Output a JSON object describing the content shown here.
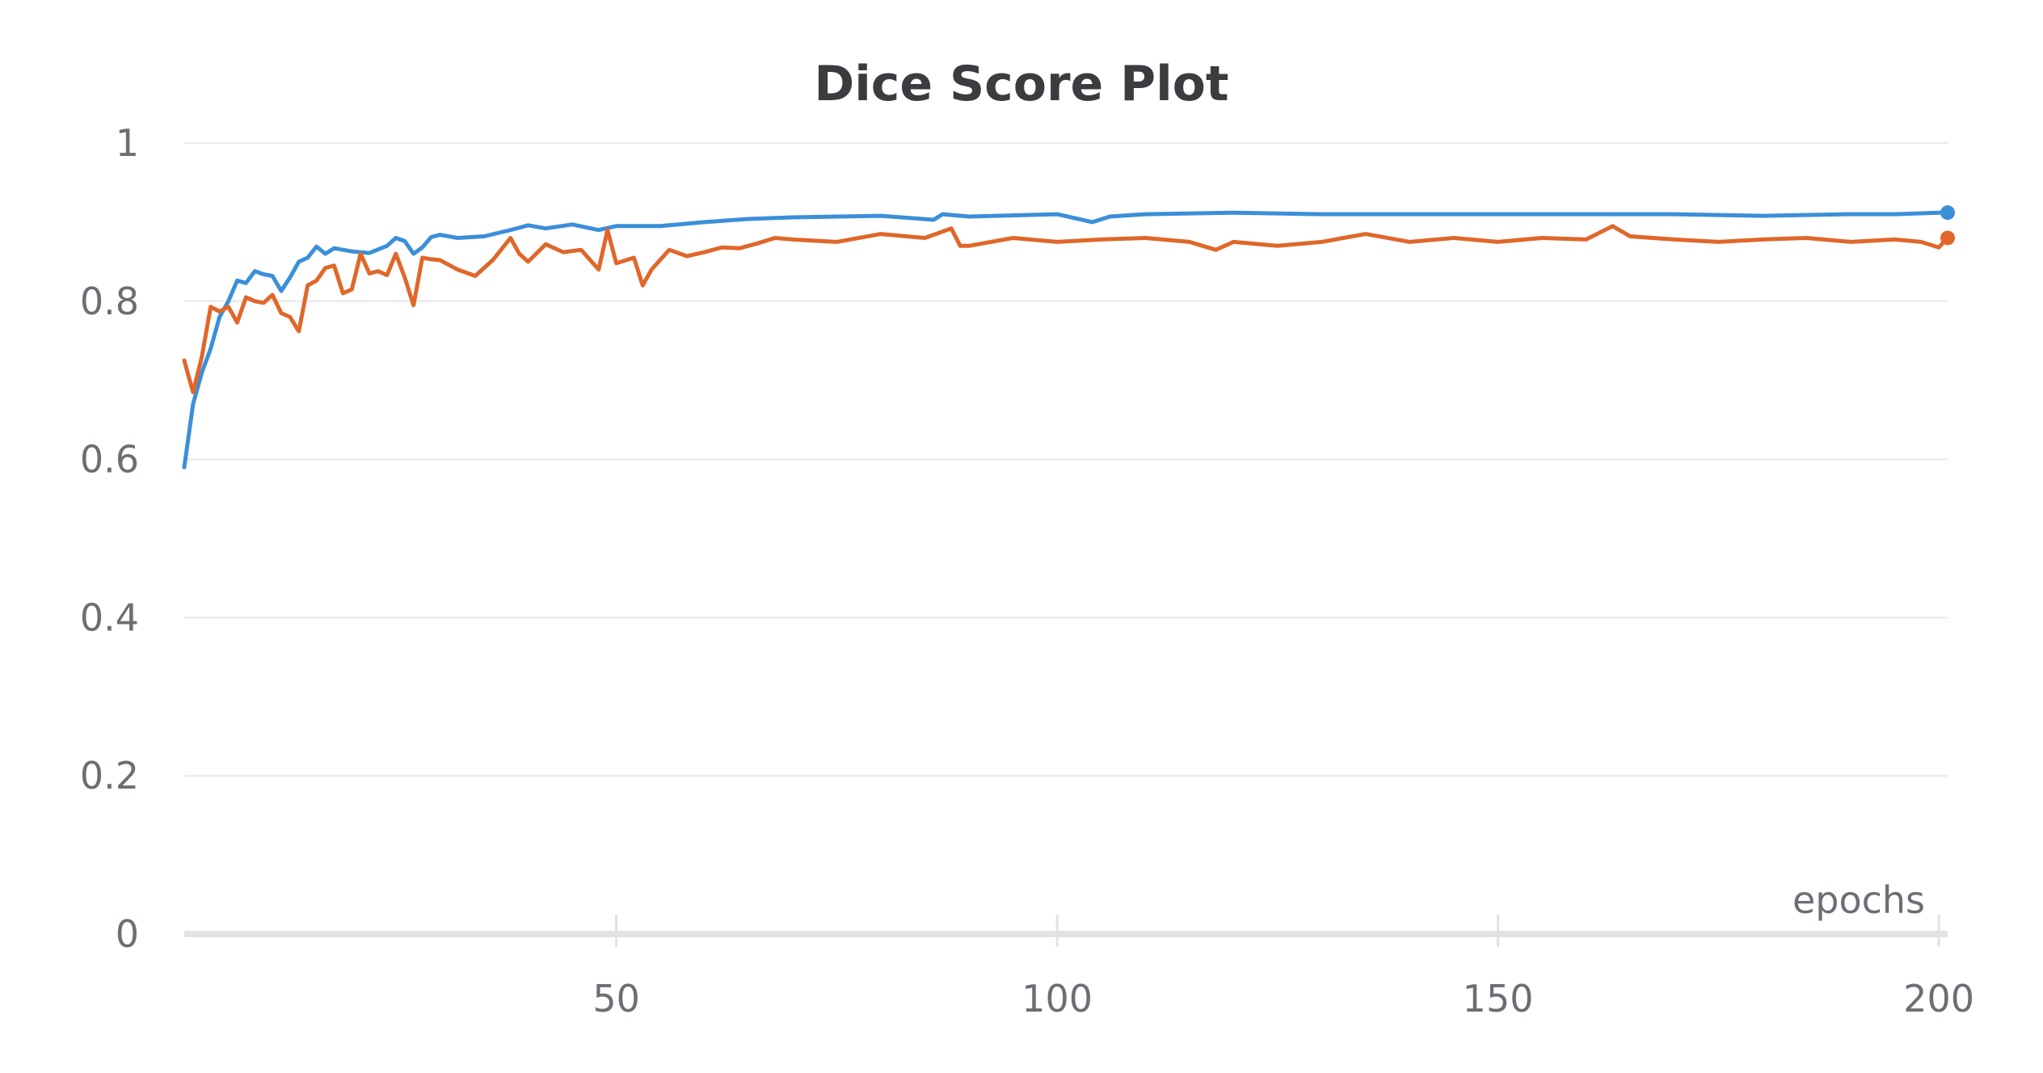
{
  "chart_data": {
    "type": "line",
    "title": "Dice Score Plot",
    "xlabel": "epochs",
    "ylabel": "",
    "xlim": [
      1,
      201
    ],
    "ylim": [
      0,
      1
    ],
    "xticks": [
      "50",
      "100",
      "150",
      "200"
    ],
    "yticks": [
      "0",
      "0.2",
      "0.4",
      "0.6",
      "0.8",
      "1"
    ],
    "grid": "horizontal",
    "legend": "none",
    "series": [
      {
        "color": "#3b8fd9",
        "end_marker": true,
        "x": [
          1,
          2,
          3,
          4,
          5,
          6,
          7,
          8,
          9,
          10,
          11,
          12,
          13,
          14,
          15,
          16,
          17,
          18,
          19,
          20,
          22,
          24,
          25,
          26,
          27,
          28,
          29,
          30,
          32,
          35,
          38,
          40,
          42,
          45,
          48,
          50,
          55,
          60,
          65,
          70,
          80,
          86,
          87,
          90,
          100,
          104,
          106,
          110,
          120,
          130,
          140,
          150,
          160,
          170,
          180,
          190,
          195,
          200,
          201
        ],
        "y": [
          0.59,
          0.67,
          0.71,
          0.74,
          0.78,
          0.8,
          0.826,
          0.823,
          0.838,
          0.834,
          0.832,
          0.813,
          0.83,
          0.85,
          0.855,
          0.869,
          0.86,
          0.867,
          0.865,
          0.863,
          0.861,
          0.87,
          0.88,
          0.876,
          0.86,
          0.868,
          0.881,
          0.884,
          0.88,
          0.882,
          0.89,
          0.896,
          0.892,
          0.897,
          0.89,
          0.895,
          0.895,
          0.9,
          0.904,
          0.906,
          0.908,
          0.903,
          0.91,
          0.907,
          0.91,
          0.9,
          0.907,
          0.91,
          0.912,
          0.91,
          0.91,
          0.91,
          0.91,
          0.91,
          0.908,
          0.91,
          0.91,
          0.912,
          0.912
        ]
      },
      {
        "color": "#e0672a",
        "end_marker": true,
        "x": [
          1,
          2,
          3,
          4,
          5,
          6,
          7,
          8,
          9,
          10,
          11,
          12,
          13,
          14,
          15,
          16,
          17,
          18,
          19,
          20,
          21,
          22,
          23,
          24,
          25,
          26,
          27,
          28,
          29,
          30,
          32,
          34,
          36,
          38,
          39,
          40,
          42,
          44,
          46,
          48,
          49,
          50,
          52,
          53,
          54,
          56,
          58,
          60,
          62,
          64,
          66,
          68,
          70,
          75,
          80,
          85,
          88,
          89,
          90,
          95,
          100,
          105,
          110,
          115,
          118,
          120,
          125,
          130,
          135,
          140,
          145,
          150,
          155,
          160,
          163,
          165,
          170,
          175,
          180,
          185,
          190,
          195,
          198,
          200,
          201
        ],
        "y": [
          0.725,
          0.685,
          0.73,
          0.793,
          0.787,
          0.793,
          0.773,
          0.805,
          0.8,
          0.798,
          0.808,
          0.785,
          0.78,
          0.762,
          0.82,
          0.826,
          0.842,
          0.845,
          0.81,
          0.815,
          0.86,
          0.835,
          0.838,
          0.833,
          0.86,
          0.83,
          0.795,
          0.855,
          0.853,
          0.852,
          0.84,
          0.832,
          0.852,
          0.88,
          0.86,
          0.85,
          0.872,
          0.862,
          0.865,
          0.84,
          0.89,
          0.848,
          0.855,
          0.82,
          0.84,
          0.865,
          0.857,
          0.862,
          0.868,
          0.867,
          0.873,
          0.88,
          0.878,
          0.875,
          0.885,
          0.88,
          0.892,
          0.87,
          0.87,
          0.88,
          0.875,
          0.878,
          0.88,
          0.875,
          0.865,
          0.875,
          0.87,
          0.875,
          0.885,
          0.875,
          0.88,
          0.875,
          0.88,
          0.878,
          0.895,
          0.882,
          0.878,
          0.875,
          0.878,
          0.88,
          0.875,
          0.878,
          0.875,
          0.868,
          0.88
        ]
      }
    ]
  }
}
